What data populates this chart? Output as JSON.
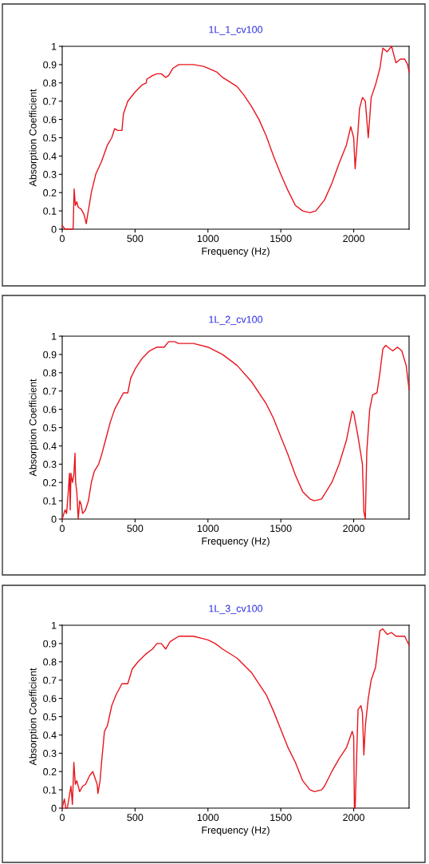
{
  "chart_data": [
    {
      "type": "line",
      "title": "1L_1_cv100",
      "xlabel": "Frequency (Hz)",
      "ylabel": "Absorption Coefficient",
      "xlim": [
        0,
        2380
      ],
      "xticks": [
        0,
        500,
        1000,
        1500,
        2000
      ],
      "ylim": [
        0,
        1
      ],
      "yticks": [
        0,
        0.1,
        0.2,
        0.3,
        0.4,
        0.5,
        0.6,
        0.7,
        0.8,
        0.9,
        1
      ],
      "grid": false,
      "series": [
        {
          "color": "#e8141c",
          "x": [
            0,
            20,
            75,
            82,
            90,
            100,
            110,
            130,
            150,
            165,
            175,
            200,
            230,
            270,
            310,
            340,
            360,
            380,
            410,
            420,
            450,
            500,
            550,
            577,
            580,
            600,
            620,
            650,
            680,
            710,
            730,
            760,
            800,
            900,
            970,
            1000,
            1060,
            1100,
            1200,
            1250,
            1300,
            1350,
            1400,
            1450,
            1500,
            1550,
            1600,
            1650,
            1700,
            1740,
            1800,
            1850,
            1900,
            1950,
            1980,
            2000,
            2010,
            2030,
            2040,
            2060,
            2080,
            2100,
            2120,
            2150,
            2180,
            2200,
            2230,
            2260,
            2290,
            2320,
            2350,
            2370,
            2380
          ],
          "values": [
            0.02,
            0.0,
            0.0,
            0.22,
            0.13,
            0.15,
            0.12,
            0.11,
            0.08,
            0.03,
            0.08,
            0.2,
            0.3,
            0.37,
            0.46,
            0.5,
            0.55,
            0.54,
            0.54,
            0.63,
            0.7,
            0.75,
            0.79,
            0.8,
            0.82,
            0.83,
            0.84,
            0.85,
            0.85,
            0.83,
            0.84,
            0.88,
            0.9,
            0.9,
            0.89,
            0.88,
            0.86,
            0.83,
            0.78,
            0.73,
            0.67,
            0.6,
            0.51,
            0.4,
            0.3,
            0.21,
            0.13,
            0.1,
            0.09,
            0.1,
            0.16,
            0.25,
            0.36,
            0.46,
            0.56,
            0.5,
            0.33,
            0.54,
            0.66,
            0.72,
            0.7,
            0.5,
            0.72,
            0.79,
            0.88,
            0.99,
            0.97,
            1.0,
            0.91,
            0.93,
            0.93,
            0.9,
            0.86
          ]
        }
      ]
    },
    {
      "type": "line",
      "title": "1L_2_cv100",
      "xlabel": "Frequency (Hz)",
      "ylabel": "Absorption Coefficient",
      "xlim": [
        0,
        2380
      ],
      "xticks": [
        0,
        500,
        1000,
        1500,
        2000
      ],
      "ylim": [
        0,
        1
      ],
      "yticks": [
        0,
        0.1,
        0.2,
        0.3,
        0.4,
        0.5,
        0.6,
        0.7,
        0.8,
        0.9,
        1
      ],
      "grid": false,
      "series": [
        {
          "color": "#e8141c",
          "x": [
            0,
            20,
            30,
            40,
            50,
            55,
            60,
            70,
            80,
            88,
            92,
            100,
            110,
            120,
            130,
            140,
            160,
            180,
            200,
            220,
            250,
            270,
            300,
            330,
            360,
            400,
            420,
            450,
            470,
            500,
            550,
            600,
            650,
            700,
            730,
            770,
            800,
            900,
            1000,
            1100,
            1200,
            1300,
            1400,
            1450,
            1500,
            1550,
            1600,
            1650,
            1700,
            1730,
            1780,
            1850,
            1900,
            1950,
            1990,
            2000,
            2030,
            2060,
            2070,
            2080,
            2090,
            2110,
            2130,
            2160,
            2180,
            2200,
            2220,
            2250,
            2270,
            2300,
            2330,
            2360,
            2380
          ],
          "values": [
            0.0,
            0.05,
            0.03,
            0.13,
            0.25,
            0.05,
            0.25,
            0.2,
            0.24,
            0.36,
            0.2,
            0.15,
            0.0,
            0.1,
            0.08,
            0.03,
            0.05,
            0.1,
            0.2,
            0.26,
            0.3,
            0.35,
            0.44,
            0.53,
            0.6,
            0.66,
            0.69,
            0.69,
            0.77,
            0.82,
            0.88,
            0.92,
            0.94,
            0.94,
            0.97,
            0.97,
            0.96,
            0.96,
            0.94,
            0.9,
            0.84,
            0.75,
            0.63,
            0.55,
            0.45,
            0.35,
            0.24,
            0.15,
            0.11,
            0.1,
            0.11,
            0.2,
            0.3,
            0.43,
            0.59,
            0.58,
            0.45,
            0.3,
            0.04,
            0.0,
            0.37,
            0.6,
            0.68,
            0.69,
            0.8,
            0.93,
            0.95,
            0.93,
            0.92,
            0.94,
            0.92,
            0.84,
            0.71
          ]
        }
      ]
    },
    {
      "type": "line",
      "title": "1L_3_cv100",
      "xlabel": "Frequency (Hz)",
      "ylabel": "Absorption Coefficient",
      "xlim": [
        0,
        2380
      ],
      "xticks": [
        0,
        500,
        1000,
        1500,
        2000
      ],
      "ylim": [
        0,
        1
      ],
      "yticks": [
        0,
        0.1,
        0.2,
        0.3,
        0.4,
        0.5,
        0.6,
        0.7,
        0.8,
        0.9,
        1
      ],
      "grid": false,
      "series": [
        {
          "color": "#e8141c",
          "x": [
            0,
            15,
            25,
            35,
            60,
            70,
            80,
            90,
            100,
            120,
            140,
            160,
            190,
            210,
            240,
            245,
            260,
            270,
            290,
            310,
            340,
            370,
            410,
            450,
            480,
            520,
            570,
            620,
            650,
            680,
            700,
            710,
            740,
            800,
            900,
            1000,
            1050,
            1100,
            1200,
            1300,
            1400,
            1450,
            1500,
            1550,
            1600,
            1650,
            1700,
            1730,
            1780,
            1800,
            1850,
            1900,
            1950,
            1990,
            2000,
            2005,
            2010,
            2030,
            2050,
            2060,
            2070,
            2080,
            2100,
            2120,
            2150,
            2180,
            2200,
            2230,
            2260,
            2290,
            2350,
            2380
          ],
          "values": [
            0.0,
            0.05,
            0.0,
            0.0,
            0.12,
            0.02,
            0.25,
            0.13,
            0.15,
            0.09,
            0.12,
            0.13,
            0.18,
            0.2,
            0.13,
            0.08,
            0.15,
            0.25,
            0.42,
            0.45,
            0.56,
            0.62,
            0.68,
            0.68,
            0.76,
            0.8,
            0.84,
            0.87,
            0.9,
            0.9,
            0.88,
            0.87,
            0.91,
            0.94,
            0.94,
            0.92,
            0.9,
            0.87,
            0.82,
            0.74,
            0.62,
            0.53,
            0.43,
            0.33,
            0.25,
            0.15,
            0.1,
            0.09,
            0.1,
            0.12,
            0.2,
            0.27,
            0.33,
            0.42,
            0.39,
            0.0,
            0.0,
            0.54,
            0.56,
            0.52,
            0.29,
            0.45,
            0.6,
            0.7,
            0.77,
            0.97,
            0.98,
            0.95,
            0.96,
            0.94,
            0.94,
            0.89
          ]
        }
      ]
    }
  ]
}
